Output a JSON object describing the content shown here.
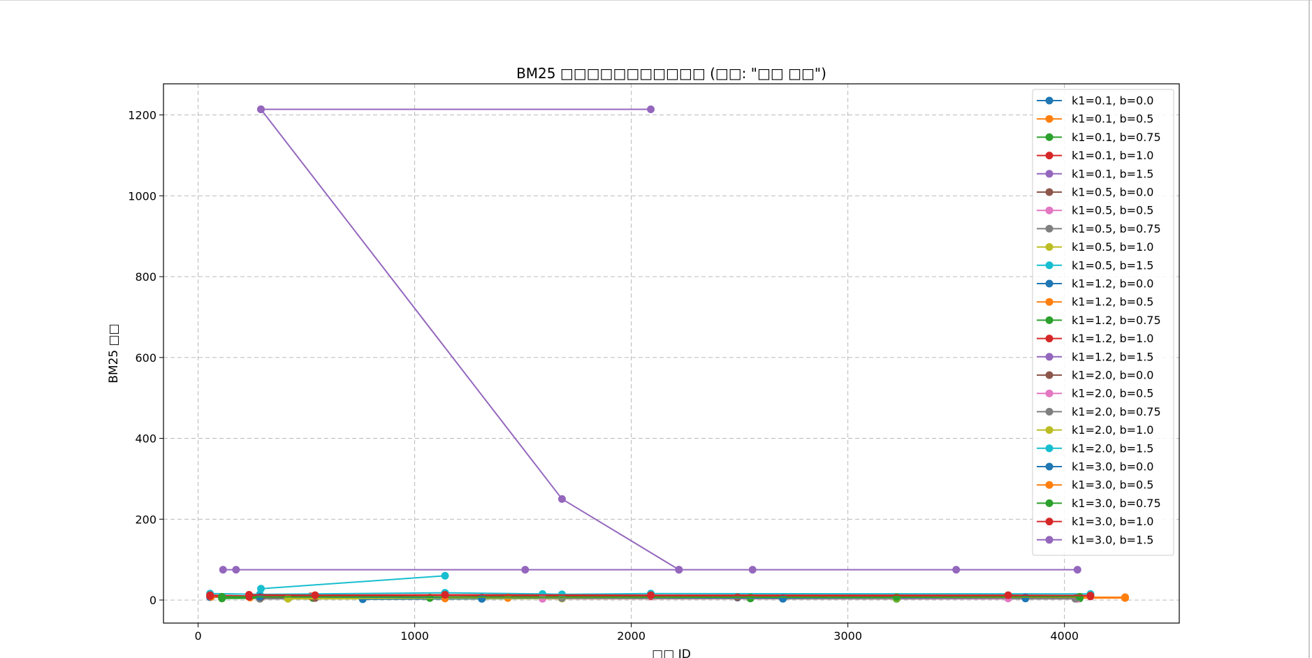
{
  "chart_data": {
    "type": "line",
    "title": "BM25 □□□□□□□□□□□ (□□: \"□□ □□\")",
    "xlabel": "□□ ID",
    "ylabel": "BM25 □□",
    "xlim": [
      -160,
      4530
    ],
    "ylim": [
      -57,
      1277
    ],
    "xticks": [
      0,
      1000,
      2000,
      3000,
      4000
    ],
    "yticks": [
      0,
      200,
      400,
      600,
      800,
      1000,
      1200
    ],
    "grid": true,
    "legend_position": "top-right",
    "colors": [
      "#1f77b4",
      "#ff7f0e",
      "#2ca02c",
      "#d62728",
      "#9467bd",
      "#8c564b",
      "#e377c2",
      "#7f7f7f",
      "#bcbd22",
      "#17becf"
    ],
    "series": [
      {
        "name": "k1=0.1, b=0.0",
        "color": "#1f77b4",
        "x": [
          55,
          285,
          1310,
          2490,
          2700,
          3820,
          4280
        ],
        "y": [
          7,
          5,
          3,
          6,
          3,
          4,
          6
        ]
      },
      {
        "name": "k1=0.1, b=0.5",
        "color": "#ff7f0e",
        "x": [
          60,
          240,
          1140,
          1430,
          3225,
          4280
        ],
        "y": [
          8,
          6,
          4,
          5,
          4,
          5
        ]
      },
      {
        "name": "k1=0.1, b=0.75",
        "color": "#2ca02c",
        "x": [
          110,
          530,
          1070,
          2550,
          3225,
          4070
        ],
        "y": [
          4,
          5,
          5,
          4,
          3,
          4
        ]
      },
      {
        "name": "k1=0.1, b=1.0",
        "color": "#d62728",
        "x": [
          55,
          235,
          285,
          520,
          540,
          1140,
          1680,
          2090,
          3740,
          4120
        ],
        "y": [
          10,
          8,
          11,
          9,
          10,
          8,
          10,
          9,
          10,
          9
        ]
      },
      {
        "name": "k1=0.1, b=1.5",
        "color": "#9467bd",
        "x": [
          290,
          2090
        ],
        "y": [
          1214,
          1214
        ]
      },
      {
        "name": "k1=0.5, b=0.0",
        "color": "#8c564b",
        "x": [
          285,
          540,
          2550,
          3740
        ],
        "y": [
          6,
          5,
          6,
          5
        ]
      },
      {
        "name": "k1=0.5, b=0.5",
        "color": "#e377c2",
        "x": [
          1590,
          4060
        ],
        "y": [
          3,
          3
        ]
      },
      {
        "name": "k1=0.5, b=0.75",
        "color": "#7f7f7f",
        "x": [
          285,
          1680,
          4050
        ],
        "y": [
          3,
          4,
          3
        ]
      },
      {
        "name": "k1=0.5, b=1.0",
        "color": "#bcbd22",
        "x": [
          415,
          1680
        ],
        "y": [
          3,
          4
        ]
      },
      {
        "name": "k1=0.5, b=1.5",
        "color": "#17becf",
        "x": [
          55,
          285,
          1140,
          1590,
          1680,
          2090,
          4120
        ],
        "y": [
          16,
          14,
          18,
          15,
          14,
          16,
          15
        ]
      },
      {
        "name": "k1=1.2, b=0.0",
        "color": "#1f77b4",
        "x": [
          760,
          1310
        ],
        "y": [
          2,
          3
        ]
      },
      {
        "name": "k1=1.2, b=0.5",
        "color": "#ff7f0e",
        "x": [
          1430,
          4280
        ],
        "y": [
          6,
          6
        ]
      },
      {
        "name": "k1=1.2, b=0.75",
        "color": "#2ca02c",
        "x": [
          110,
          1070,
          2550,
          4070
        ],
        "y": [
          7,
          6,
          6,
          7
        ]
      },
      {
        "name": "k1=1.2, b=1.0",
        "color": "#d62728",
        "x": [
          55,
          235,
          540,
          1140,
          3740,
          4120
        ],
        "y": [
          12,
          10,
          11,
          12,
          11,
          10
        ]
      },
      {
        "name": "k1=1.2, b=1.5",
        "color": "#9467bd",
        "x": [
          115,
          175,
          1510,
          2220,
          2560,
          3500,
          4060
        ],
        "y": [
          75,
          75,
          75,
          75,
          75,
          75,
          75
        ]
      },
      {
        "name": "k1=2.0, b=0.0",
        "color": "#8c564b",
        "x": [
          290,
          2490
        ],
        "y": [
          7,
          7
        ]
      },
      {
        "name": "k1=2.0, b=0.5",
        "color": "#e377c2",
        "x": [
          1590,
          3740
        ],
        "y": [
          5,
          4
        ]
      },
      {
        "name": "k1=2.0, b=0.75",
        "color": "#7f7f7f",
        "x": [
          1680,
          4050
        ],
        "y": [
          5,
          5
        ]
      },
      {
        "name": "k1=2.0, b=1.0",
        "color": "#bcbd22",
        "x": [
          415,
          3225
        ],
        "y": [
          4,
          5
        ]
      },
      {
        "name": "k1=2.0, b=1.5",
        "color": "#17becf",
        "x": [
          290,
          1140
        ],
        "y": [
          28,
          60
        ]
      },
      {
        "name": "k1=3.0, b=0.0",
        "color": "#1f77b4",
        "x": [
          285,
          1310,
          2700,
          3820
        ],
        "y": [
          8,
          6,
          5,
          7
        ]
      },
      {
        "name": "k1=3.0, b=0.5",
        "color": "#ff7f0e",
        "x": [
          1140,
          4280
        ],
        "y": [
          7,
          7
        ]
      },
      {
        "name": "k1=3.0, b=0.75",
        "color": "#2ca02c",
        "x": [
          110,
          3225,
          4070
        ],
        "y": [
          8,
          7,
          8
        ]
      },
      {
        "name": "k1=3.0, b=1.0",
        "color": "#d62728",
        "x": [
          235,
          540,
          1140,
          2090,
          3740,
          4120
        ],
        "y": [
          13,
          12,
          13,
          12,
          12,
          11
        ]
      },
      {
        "name": "k1=3.0, b=1.5",
        "color": "#9467bd",
        "x": [
          290,
          1680,
          2220
        ],
        "y": [
          1214,
          250,
          75
        ]
      }
    ]
  }
}
